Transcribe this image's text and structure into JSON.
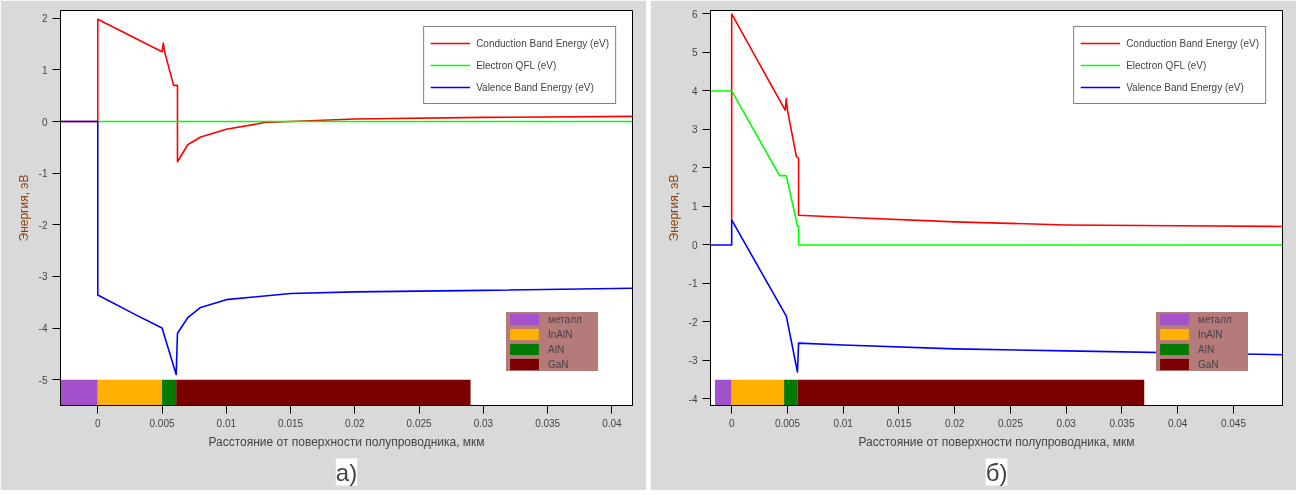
{
  "chart_data": [
    {
      "type": "line",
      "xlabel": "Расстояние от поверхности полупроводника, мкм",
      "ylabel": "Энергия, эВ",
      "legend": "top right",
      "grid": false,
      "xlim": [
        -0.0029,
        0.0416
      ],
      "ylim": [
        -5.5,
        2.15
      ],
      "xticks": [
        0,
        0.005,
        0.01,
        0.015,
        0.02,
        0.025,
        0.03,
        0.035,
        0.04
      ],
      "yticks": [
        -5,
        -4,
        -3,
        -2,
        -1,
        0,
        1,
        2
      ],
      "series": [
        {
          "name": "Conduction Band Energy (eV)",
          "color": "#ff0000",
          "x": [
            -0.0029,
            0,
            0,
            0.005,
            0.0051,
            0.0052,
            0.0059,
            0.0062,
            0.0062,
            0.007,
            0.008,
            0.01,
            0.013,
            0.02,
            0.03,
            0.0416
          ],
          "values": [
            0,
            0,
            1.98,
            1.35,
            1.52,
            1.35,
            0.7,
            0.7,
            -0.78,
            -0.45,
            -0.3,
            -0.15,
            -0.02,
            0.05,
            0.08,
            0.1
          ]
        },
        {
          "name": "Electron QFL (eV)",
          "color": "#00ff00",
          "x": [
            0,
            0.0416
          ],
          "values": [
            0,
            0
          ]
        },
        {
          "name": "Valence Band Energy (eV)",
          "color": "#0000ff",
          "x": [
            -0.0029,
            0,
            0,
            0.003,
            0.005,
            0.0061,
            0.0062,
            0.007,
            0.008,
            0.01,
            0.015,
            0.02,
            0.03,
            0.0416
          ],
          "values": [
            0,
            0,
            -3.36,
            -3.75,
            -4.0,
            -4.9,
            -4.1,
            -3.8,
            -3.6,
            -3.45,
            -3.33,
            -3.3,
            -3.27,
            -3.23
          ]
        }
      ],
      "bands": [
        {
          "axis": "x",
          "from": -0.0029,
          "to": 0,
          "label": "металл",
          "color": "#a352cc"
        },
        {
          "axis": "x",
          "from": 0,
          "to": 0.005,
          "label": "InAlN",
          "color": "#ffb000"
        },
        {
          "axis": "x",
          "from": 0.005,
          "to": 0.0061,
          "label": "AlN",
          "color": "#007a00"
        },
        {
          "axis": "x",
          "from": 0.0061,
          "to": 0.029,
          "label": "GaN",
          "color": "#7a0000"
        }
      ],
      "annotations": [
        "а)"
      ]
    },
    {
      "type": "line",
      "xlabel": "Расстояние от поверхности полупроводника, мкм",
      "ylabel": "Энергия, эВ",
      "legend": "top right",
      "grid": false,
      "xlim": [
        -0.0019,
        0.0494
      ],
      "ylim": [
        -4.17,
        6.09
      ],
      "xticks": [
        0,
        0.005,
        0.01,
        0.015,
        0.02,
        0.025,
        0.03,
        0.035,
        0.04,
        0.045
      ],
      "yticks": [
        -4,
        -3,
        -2,
        -1,
        0,
        1,
        2,
        3,
        4,
        5,
        6
      ],
      "series": [
        {
          "name": "Conduction Band Energy (eV)",
          "color": "#ff0000",
          "x": [
            0,
            0,
            0.0048,
            0.0049,
            0.005,
            0.0058,
            0.006,
            0.006,
            0.01,
            0.02,
            0.03,
            0.04,
            0.0494
          ],
          "values": [
            0.65,
            6.0,
            3.5,
            3.8,
            3.5,
            2.3,
            2.25,
            0.77,
            0.72,
            0.6,
            0.52,
            0.5,
            0.48
          ]
        },
        {
          "name": "Electron QFL (eV)",
          "color": "#00ff00",
          "x": [
            -0.0019,
            0,
            0.0043,
            0.0049,
            0.0059,
            0.006,
            0.006,
            0.0494
          ],
          "values": [
            4,
            4,
            1.8,
            1.8,
            0.5,
            0.5,
            0,
            0
          ]
        },
        {
          "name": "Valence Band Energy (eV)",
          "color": "#0000ff",
          "x": [
            -0.0019,
            0,
            0,
            0.0049,
            0.0059,
            0.006,
            0.01,
            0.02,
            0.03,
            0.0494
          ],
          "values": [
            0,
            0,
            0.65,
            -1.85,
            -3.3,
            -2.55,
            -2.6,
            -2.7,
            -2.75,
            -2.85
          ]
        }
      ],
      "bands": [
        {
          "axis": "x",
          "from": -0.0015,
          "to": 0,
          "label": "металл",
          "color": "#a352cc"
        },
        {
          "axis": "x",
          "from": 0,
          "to": 0.0047,
          "label": "InAlN",
          "color": "#ffb000"
        },
        {
          "axis": "x",
          "from": 0.0047,
          "to": 0.0059,
          "label": "AlN",
          "color": "#007a00"
        },
        {
          "axis": "x",
          "from": 0.0059,
          "to": 0.037,
          "label": "GaN",
          "color": "#7a0000"
        }
      ],
      "annotations": [
        "б)"
      ]
    }
  ]
}
